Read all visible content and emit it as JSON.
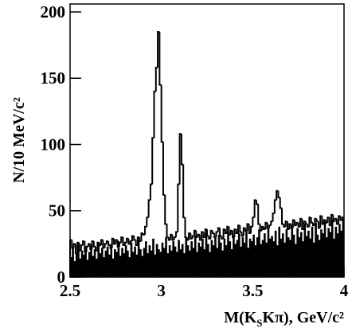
{
  "chart_data": {
    "type": "histogram",
    "y_label": "N/10 MeV/c²",
    "x_label": [
      "M(K",
      "S",
      "Kπ), GeV/c²"
    ],
    "xlim": [
      2.5,
      4
    ],
    "xticks": [
      2.5,
      3,
      3.5,
      4
    ],
    "ylim": [
      0,
      206
    ],
    "yticks": [
      0,
      50,
      100,
      150,
      200
    ],
    "bins": [
      2.5,
      2.51,
      2.52,
      2.53,
      2.54,
      2.55,
      2.56,
      2.57,
      2.58,
      2.59,
      2.6,
      2.61,
      2.62,
      2.63,
      2.64,
      2.65,
      2.66,
      2.67,
      2.68,
      2.69,
      2.7,
      2.71,
      2.72,
      2.73,
      2.74,
      2.75,
      2.76,
      2.77,
      2.78,
      2.79,
      2.8,
      2.81,
      2.82,
      2.83,
      2.84,
      2.85,
      2.86,
      2.87,
      2.88,
      2.89,
      2.9,
      2.91,
      2.92,
      2.93,
      2.94,
      2.95,
      2.96,
      2.97,
      2.98,
      2.99,
      3.0,
      3.01,
      3.02,
      3.03,
      3.04,
      3.05,
      3.06,
      3.07,
      3.08,
      3.09,
      3.1,
      3.11,
      3.12,
      3.13,
      3.14,
      3.15,
      3.16,
      3.17,
      3.18,
      3.19,
      3.2,
      3.21,
      3.22,
      3.23,
      3.24,
      3.25,
      3.26,
      3.27,
      3.28,
      3.29,
      3.3,
      3.31,
      3.32,
      3.33,
      3.34,
      3.35,
      3.36,
      3.37,
      3.38,
      3.39,
      3.4,
      3.41,
      3.42,
      3.43,
      3.44,
      3.45,
      3.46,
      3.47,
      3.48,
      3.49,
      3.5,
      3.51,
      3.52,
      3.53,
      3.54,
      3.55,
      3.56,
      3.57,
      3.58,
      3.59,
      3.6,
      3.61,
      3.62,
      3.63,
      3.64,
      3.65,
      3.66,
      3.67,
      3.68,
      3.69,
      3.7,
      3.71,
      3.72,
      3.73,
      3.74,
      3.75,
      3.76,
      3.77,
      3.78,
      3.79,
      3.8,
      3.81,
      3.82,
      3.83,
      3.84,
      3.85,
      3.86,
      3.87,
      3.88,
      3.89,
      3.9,
      3.91,
      3.92,
      3.93,
      3.94,
      3.95,
      3.96,
      3.97,
      3.98,
      3.99,
      4.0
    ],
    "series": [
      {
        "style": "open",
        "color": "#000000",
        "values": [
          28,
          22,
          25,
          18,
          26,
          20,
          24,
          27,
          19,
          23,
          25,
          21,
          27,
          23,
          20,
          26,
          24,
          28,
          22,
          25,
          27,
          24,
          22,
          29,
          25,
          28,
          23,
          26,
          30,
          24,
          26,
          29,
          25,
          27,
          31,
          28,
          24,
          30,
          27,
          33,
          32,
          38,
          45,
          58,
          70,
          105,
          140,
          158,
          185,
          145,
          102,
          62,
          40,
          30,
          28,
          32,
          28,
          30,
          34,
          70,
          108,
          85,
          45,
          30,
          28,
          33,
          29,
          31,
          35,
          30,
          32,
          28,
          34,
          30,
          36,
          31,
          29,
          35,
          33,
          30,
          34,
          37,
          31,
          29,
          36,
          33,
          38,
          32,
          35,
          30,
          36,
          33,
          39,
          34,
          31,
          37,
          35,
          40,
          33,
          38,
          45,
          58,
          55,
          40,
          35,
          38,
          36,
          41,
          37,
          39,
          42,
          48,
          58,
          65,
          60,
          52,
          40,
          38,
          42,
          36,
          40,
          37,
          43,
          39,
          41,
          38,
          44,
          36,
          42,
          40,
          38,
          45,
          41,
          39,
          44,
          42,
          37,
          46,
          40,
          43,
          41,
          45,
          39,
          47,
          42,
          44,
          40,
          46,
          43,
          45
        ]
      },
      {
        "style": "filled",
        "color": "#000000",
        "values": [
          15,
          22,
          12,
          18,
          25,
          14,
          20,
          17,
          23,
          13,
          19,
          24,
          16,
          21,
          14,
          26,
          18,
          22,
          15,
          20,
          23,
          17,
          25,
          14,
          21,
          19,
          27,
          16,
          22,
          18,
          24,
          20,
          15,
          26,
          19,
          23,
          17,
          28,
          21,
          16,
          22,
          27,
          18,
          24,
          20,
          29,
          17,
          25,
          21,
          19,
          26,
          22,
          30,
          18,
          24,
          20,
          27,
          23,
          19,
          28,
          21,
          25,
          18,
          30,
          24,
          20,
          27,
          22,
          31,
          19,
          26,
          23,
          29,
          21,
          33,
          25,
          19,
          28,
          24,
          30,
          22,
          32,
          26,
          20,
          29,
          24,
          34,
          27,
          21,
          31,
          25,
          28,
          33,
          23,
          30,
          26,
          35,
          22,
          29,
          27,
          32,
          24,
          30,
          36,
          25,
          28,
          33,
          26,
          37,
          29,
          31,
          27,
          35,
          24,
          38,
          29,
          33,
          26,
          36,
          30,
          28,
          39,
          32,
          25,
          37,
          30,
          34,
          27,
          40,
          31,
          35,
          29,
          38,
          26,
          41,
          32,
          28,
          36,
          33,
          42,
          30,
          37,
          34,
          43,
          29,
          38,
          33,
          40,
          35,
          44
        ]
      }
    ]
  }
}
